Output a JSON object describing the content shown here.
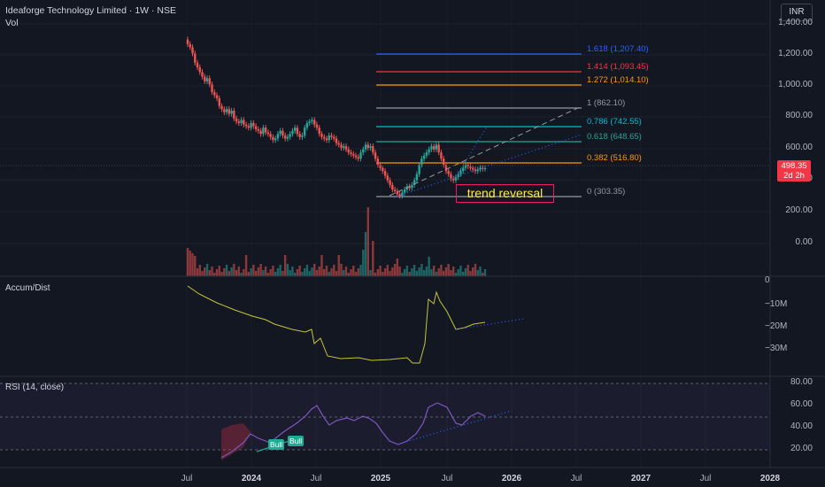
{
  "header": {
    "symbol_line": "Ideaforge Technology Limited · 1W · NSE",
    "volume_label": "Vol"
  },
  "currency_button": "INR",
  "price_tag": {
    "price": "498.35",
    "countdown": "2d 2h"
  },
  "panes": {
    "accum_label": "Accum/Dist",
    "rsi_label": "RSI (14, close)"
  },
  "main_axis": [
    "1,400.00",
    "1,200.00",
    "1,000.00",
    "800.00",
    "600.00",
    "400.00",
    "200.00",
    "0.00"
  ],
  "accum_axis": [
    "0",
    "−10M",
    "−20M",
    "−30M"
  ],
  "rsi_axis": [
    "80.00",
    "60.00",
    "40.00",
    "20.00"
  ],
  "x_axis": [
    {
      "label": "Jul",
      "bold": false
    },
    {
      "label": "2024",
      "bold": true
    },
    {
      "label": "Jul",
      "bold": false
    },
    {
      "label": "2025",
      "bold": true
    },
    {
      "label": "Jul",
      "bold": false
    },
    {
      "label": "2026",
      "bold": true
    },
    {
      "label": "Jul",
      "bold": false
    },
    {
      "label": "2027",
      "bold": true
    },
    {
      "label": "Jul",
      "bold": false
    },
    {
      "label": "2028",
      "bold": true
    }
  ],
  "fib_levels": [
    {
      "label": "1.618 (1,207.40)",
      "color": "#2962ff"
    },
    {
      "label": "1.414 (1,093.45)",
      "color": "#f23645"
    },
    {
      "label": "1.272 (1,014.10)",
      "color": "#ff9800"
    },
    {
      "label": "1 (862.10)",
      "color": "#9598a1"
    },
    {
      "label": "0.786 (742.55)",
      "color": "#00bcd4"
    },
    {
      "label": "0.618 (648.65)",
      "color": "#26a69a"
    },
    {
      "label": "0.382 (516.80)",
      "color": "#ff9800"
    },
    {
      "label": "0 (303.35)",
      "color": "#9598a1"
    }
  ],
  "annotation": "trend reversal",
  "bull_tags": [
    "Bull",
    "Bull"
  ],
  "colors": {
    "up": "#26a69a",
    "down": "#ef5350",
    "background": "#131722",
    "accum_line": "#c6c43a",
    "rsi_line": "#7e57c2",
    "trendline": "#2962ff"
  }
}
